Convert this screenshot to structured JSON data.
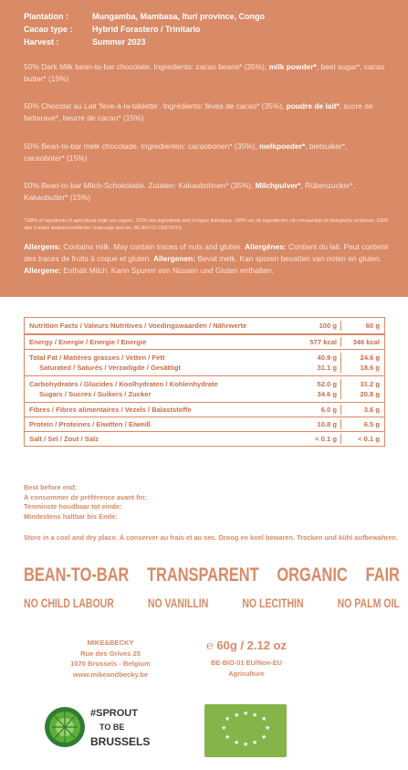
{
  "header_facts": [
    {
      "key": "Plantation :",
      "value": "Mungamba, Mambasa, Ituri province, Congo"
    },
    {
      "key": "Cacao type :",
      "value": "Hybrid Forastero / Trinitario"
    },
    {
      "key": "Harvest :",
      "value": "Summer 2023"
    }
  ],
  "ingredients": {
    "en": {
      "pre": "50% Dark Milk bean-to-bar chocolate. Ingredients: cacao beans* (35%), ",
      "bold": "milk powder*",
      "post": ", beet sugar*, cacao butter* (15%)"
    },
    "fr": {
      "pre": "50% Chocolat au Lait 'fève-à-la-tablette'. Ingrédients: fèves de cacao* (35%), ",
      "bold": "poudre de lait*",
      "post": ", sucre de betterave*, beurre de cacao* (15%)"
    },
    "nl": {
      "pre": "50% Bean-to-bar melk chocolade. Ingredienten: cacaobonen* (35%), ",
      "bold": "melkpoeder*",
      "post": ", bietsuiker*, cacaoboter* (15%)"
    },
    "de": {
      "pre": "50% Bean-to-bar Milch-Schokolade. Zutaten: Kakaobohnen* (35%), ",
      "bold": "Milchpulver*",
      "post": ", Rübenzucker*, Kakaobutter* (15%)"
    }
  },
  "organic_note": "*100% of ingredients of agricultural origin are organic. 100% des ingrédients sont d'origine biologique. 100% van de ingrediënten zijn vervaardigd uit biologische landbouw. 100% aller Zutaten landwirtschaftlichen Ursprungs sind bio. BE-BIO-01-CERTISYS.",
  "allergens": [
    {
      "label": "Allergens:",
      "text": " Contains milk. May contain traces of nuts and gluten. "
    },
    {
      "label": "Allergènes:",
      "text": " Contient du lait. Peut contenir des traces de fruits à coque et gluten. "
    },
    {
      "label": "Allergenen:",
      "text": " Bevat melk. Kan sporen bevatten van noten en gluten. "
    },
    {
      "label": "Allergene:",
      "text": " Enthält Milch. Kann Spuren von Nüssen und Gluten enthalten."
    }
  ],
  "nutrition": {
    "header": {
      "label": "Nutrition Facts / Valeurs Nutritives / Voedingswaarden / Nährwerte",
      "c1": "100 g",
      "c2": "60 g"
    },
    "energy": {
      "label": "Energy / Energie / Energie / Energie",
      "c1": "577 kcal",
      "c2": "346 kcal"
    },
    "fat": {
      "label": "Total Fat / Matières grasses / Vetten / Fett",
      "c1": "40.9 g",
      "c2": "24.6 g"
    },
    "saturated": {
      "label": "Saturated / Saturés / Verzadigde / Gesättigt",
      "c1": "31.1 g",
      "c2": "18.6 g"
    },
    "carbs": {
      "label": "Carbohydrates / Glucides / Koolhydraten / Kohlenhydrate",
      "c1": "52.0 g",
      "c2": "31.2 g"
    },
    "sugars": {
      "label": "Sugars / Sucres / Suikers / Zucker",
      "c1": "34.6 g",
      "c2": "20.8 g"
    },
    "fibres": {
      "label": "Fibres / Fibres alimentaires / Vezels / Balaststoffe",
      "c1": "6.0 g",
      "c2": "3.6 g"
    },
    "protein": {
      "label": "Protein / Proteines / Eiwitten / Eiweiß",
      "c1": "10.8 g",
      "c2": "6.5 g"
    },
    "salt": {
      "label": "Salt / Sel / Zout / Salz",
      "c1": "< 0.1 g",
      "c2": "< 0.1 g"
    }
  },
  "best_before": [
    "Best before end:",
    "À consommer de préférence avant fin:",
    "Tenminste houdbaar tot einde:",
    "Mindestens haltbar bis Ende:"
  ],
  "storage": "Store in a cool and dry place. À conserver au frais et au sec. Droog en koel bewaren. Trocken und kühl aufbewahren.",
  "claims_big": [
    "BEAN-TO-BAR",
    "TRANSPARENT",
    "ORGANIC",
    "FAIR"
  ],
  "claims_small": [
    "NO CHILD LABOUR",
    "NO VANILLIN",
    "NO LECITHIN",
    "NO PALM OIL"
  ],
  "producer": [
    "MIKE&BECKY",
    "Rue des Grives 25",
    "1070 Brussels - Belgium",
    "www.mikeandbecky.be"
  ],
  "weight": "℮ 60g / 2.12 oz",
  "certification": [
    "BE-BIO-01 EU/Non-EU",
    "Agriculture"
  ],
  "sprout_logo_text": [
    "#SPROUT",
    "TO BE",
    "BRUSSELS"
  ],
  "colors": {
    "brand": "#d98a66",
    "eu_green": "#84b44a"
  }
}
